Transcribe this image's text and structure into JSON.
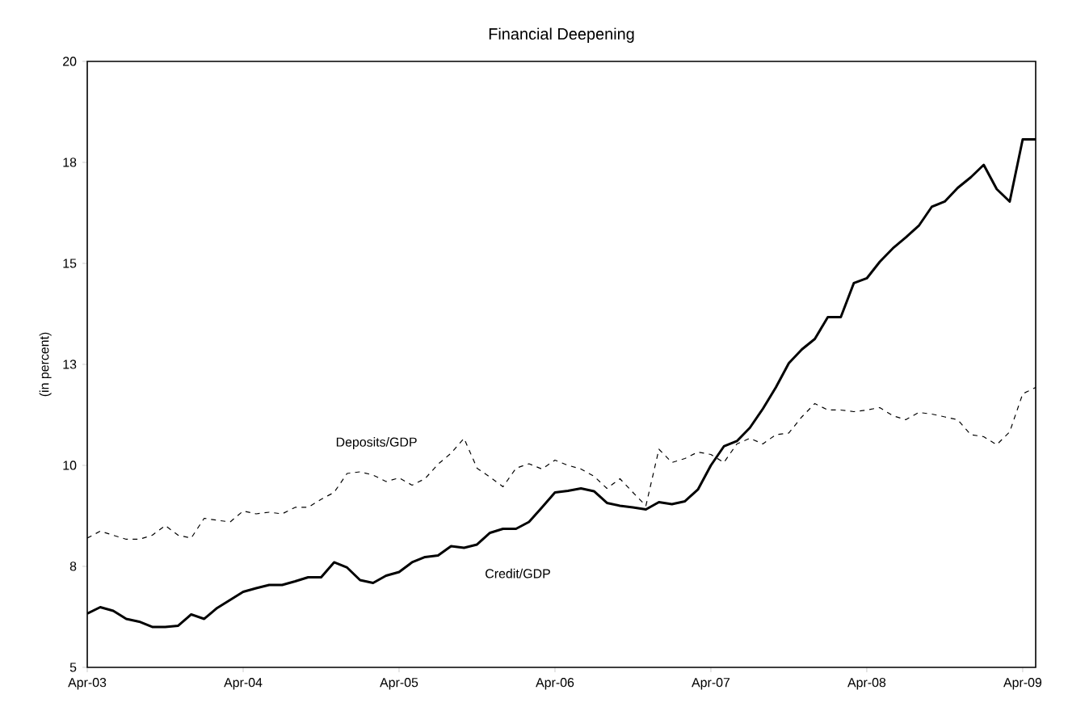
{
  "chart_data": {
    "type": "line",
    "title": "Financial Deepening",
    "ylabel": "(in percent)",
    "x": [
      "2003-04",
      "2003-05",
      "2003-06",
      "2003-07",
      "2003-08",
      "2003-09",
      "2003-10",
      "2003-11",
      "2003-12",
      "2004-01",
      "2004-02",
      "2004-03",
      "2004-04",
      "2004-05",
      "2004-06",
      "2004-07",
      "2004-08",
      "2004-09",
      "2004-10",
      "2004-11",
      "2004-12",
      "2005-01",
      "2005-02",
      "2005-03",
      "2005-04",
      "2005-05",
      "2005-06",
      "2005-07",
      "2005-08",
      "2005-09",
      "2005-10",
      "2005-11",
      "2005-12",
      "2006-01",
      "2006-02",
      "2006-03",
      "2006-04",
      "2006-05",
      "2006-06",
      "2006-07",
      "2006-08",
      "2006-09",
      "2006-10",
      "2006-11",
      "2006-12",
      "2007-01",
      "2007-02",
      "2007-03",
      "2007-04",
      "2007-05",
      "2007-06",
      "2007-07",
      "2007-08",
      "2007-09",
      "2007-10",
      "2007-11",
      "2007-12",
      "2008-01",
      "2008-02",
      "2008-03",
      "2008-04",
      "2008-05",
      "2008-06",
      "2008-07",
      "2008-08",
      "2008-09",
      "2008-10",
      "2008-11",
      "2008-12",
      "2009-01",
      "2009-02",
      "2009-03",
      "2009-04",
      "2009-05"
    ],
    "series": [
      {
        "name": "Deposits/GDP",
        "color": "#000000",
        "line_style": "dashed",
        "values": [
          8.2,
          8.37,
          8.27,
          8.17,
          8.17,
          8.27,
          8.51,
          8.27,
          8.2,
          8.69,
          8.64,
          8.6,
          8.87,
          8.8,
          8.84,
          8.8,
          8.96,
          8.96,
          9.16,
          9.33,
          9.8,
          9.84,
          9.76,
          9.6,
          9.69,
          9.51,
          9.67,
          10.03,
          10.3,
          10.67,
          9.93,
          9.71,
          9.47,
          9.93,
          10.04,
          9.91,
          10.13,
          10.0,
          9.91,
          9.73,
          9.43,
          9.67,
          9.33,
          9.0,
          10.4,
          10.07,
          10.17,
          10.33,
          10.27,
          10.07,
          10.53,
          10.67,
          10.53,
          10.76,
          10.8,
          11.2,
          11.53,
          11.37,
          11.37,
          11.33,
          11.37,
          11.43,
          11.23,
          11.13,
          11.31,
          11.27,
          11.2,
          11.13,
          10.76,
          10.71,
          10.51,
          10.83,
          11.77,
          11.93
        ]
      },
      {
        "name": "Credit/GDP",
        "color": "#000000",
        "line_style": "solid",
        "values": [
          6.33,
          6.49,
          6.4,
          6.2,
          6.13,
          6.0,
          6.0,
          6.03,
          6.31,
          6.2,
          6.47,
          6.67,
          6.87,
          6.96,
          7.04,
          7.04,
          7.13,
          7.23,
          7.23,
          7.6,
          7.47,
          7.16,
          7.09,
          7.27,
          7.36,
          7.6,
          7.73,
          7.77,
          8.0,
          7.96,
          8.04,
          8.33,
          8.43,
          8.43,
          8.6,
          8.96,
          9.33,
          9.37,
          9.43,
          9.36,
          9.07,
          9.0,
          8.96,
          8.91,
          9.09,
          9.04,
          9.11,
          9.4,
          10.0,
          10.47,
          10.6,
          10.93,
          11.4,
          11.93,
          12.53,
          12.87,
          13.13,
          13.67,
          13.67,
          14.51,
          14.63,
          15.04,
          15.37,
          15.64,
          15.93,
          16.4,
          16.53,
          16.87,
          17.13,
          17.44,
          16.84,
          16.53,
          18.07,
          18.07
        ]
      }
    ],
    "xlim": [
      "2003-04",
      "2009-05"
    ],
    "xticks": [
      {
        "value": "2003-04",
        "label": "Apr-03"
      },
      {
        "value": "2004-04",
        "label": "Apr-04"
      },
      {
        "value": "2005-04",
        "label": "Apr-05"
      },
      {
        "value": "2006-04",
        "label": "Apr-06"
      },
      {
        "value": "2007-04",
        "label": "Apr-07"
      },
      {
        "value": "2008-04",
        "label": "Apr-08"
      },
      {
        "value": "2009-04",
        "label": "Apr-09"
      }
    ],
    "ylim": [
      5,
      20
    ],
    "yticks": [
      5,
      {
        "value": 7.5,
        "label": "8"
      },
      10,
      {
        "value": 12.5,
        "label": "13"
      },
      15,
      {
        "value": 17.5,
        "label": "18"
      },
      20
    ],
    "grid": false,
    "legend": false,
    "marker": "none"
  }
}
